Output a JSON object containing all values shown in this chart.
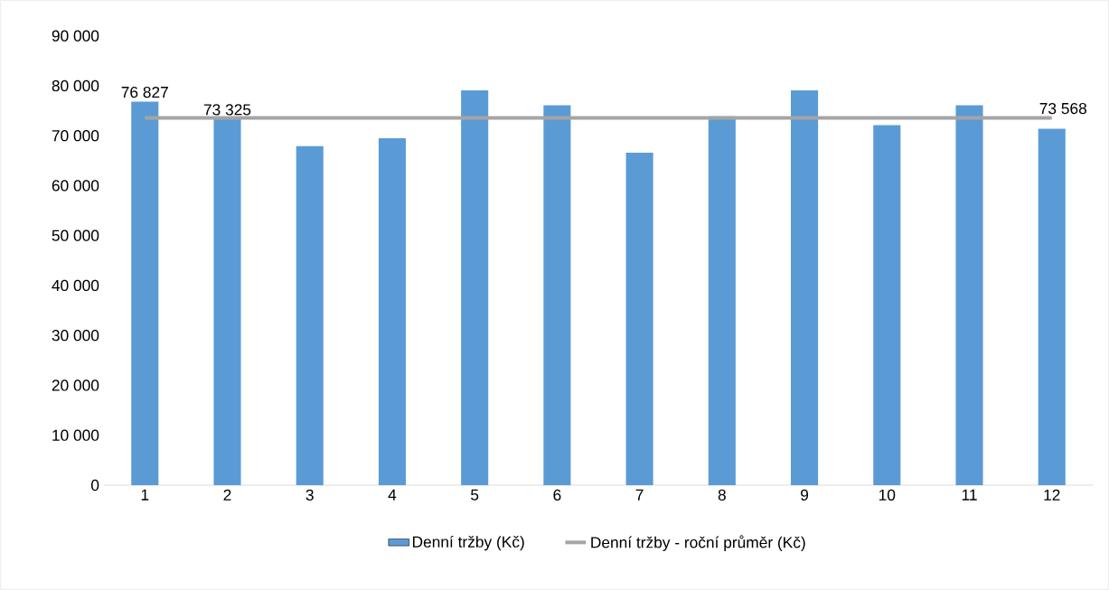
{
  "chart_data": {
    "type": "bar",
    "categories": [
      "1",
      "2",
      "3",
      "4",
      "5",
      "6",
      "7",
      "8",
      "9",
      "10",
      "11",
      "12"
    ],
    "series": [
      {
        "name": "Denní tržby (Kč)",
        "color": "#5b9bd5",
        "values": [
          76827,
          73325,
          67900,
          69500,
          79100,
          76100,
          66600,
          73900,
          79100,
          72100,
          76100,
          71400
        ],
        "value_labels": [
          "76 827",
          "73 325",
          null,
          null,
          null,
          null,
          null,
          null,
          null,
          null,
          null,
          null
        ]
      },
      {
        "name": "Denní tržby - roční průměr (Kč)",
        "type": "line",
        "color": "#a5a5a5",
        "values": [
          73568,
          73568,
          73568,
          73568,
          73568,
          73568,
          73568,
          73568,
          73568,
          73568,
          73568,
          73568
        ],
        "value_labels": [
          null,
          null,
          null,
          null,
          null,
          null,
          null,
          null,
          null,
          null,
          null,
          "73 568"
        ]
      }
    ],
    "ylim": [
      0,
      90000
    ],
    "yticks": [
      {
        "value": 0,
        "label": "0"
      },
      {
        "value": 10000,
        "label": "10 000"
      },
      {
        "value": 20000,
        "label": "20 000"
      },
      {
        "value": 30000,
        "label": "30 000"
      },
      {
        "value": 40000,
        "label": "40 000"
      },
      {
        "value": 50000,
        "label": "50 000"
      },
      {
        "value": 60000,
        "label": "60 000"
      },
      {
        "value": 70000,
        "label": "70 000"
      },
      {
        "value": 80000,
        "label": "80 000"
      },
      {
        "value": 90000,
        "label": "90 000"
      }
    ],
    "legend": "bottom"
  }
}
